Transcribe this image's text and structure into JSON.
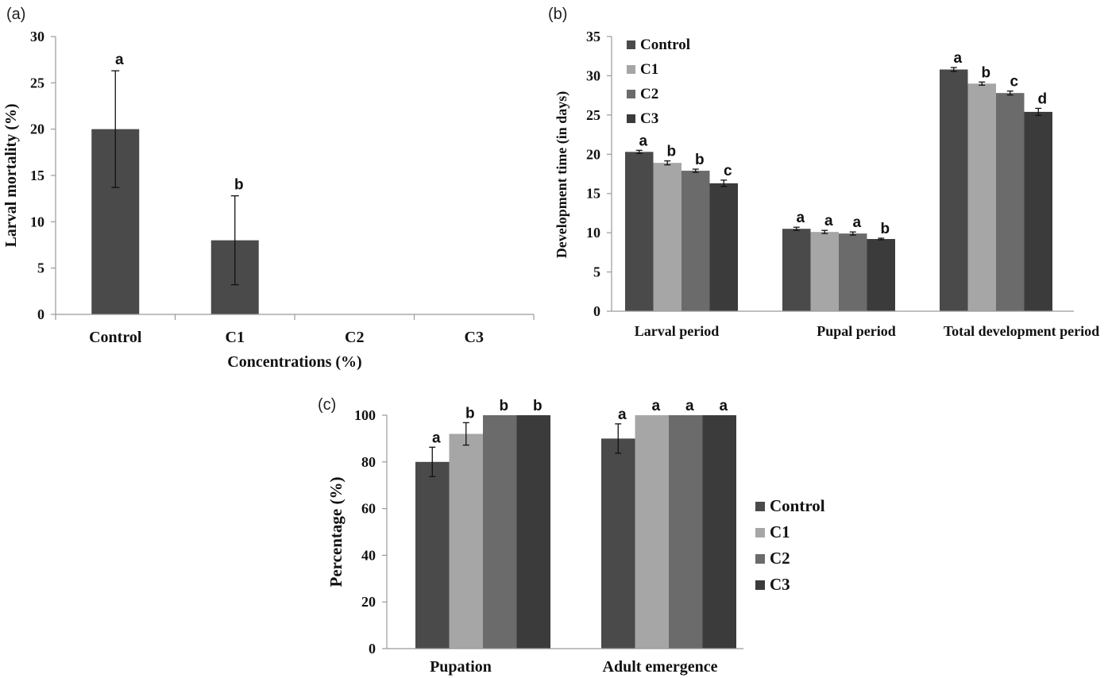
{
  "colors": {
    "Control": "#4a4a4a",
    "C1": "#a6a6a6",
    "C2": "#6b6b6b",
    "C3": "#3b3b3b"
  },
  "chart_data": [
    {
      "panel": "(a)",
      "type": "bar",
      "xlabel": "Concentrations (%)",
      "ylabel": "Larval mortality (%)",
      "ylim": [
        0,
        30
      ],
      "yticks": [
        0,
        5,
        10,
        15,
        20,
        25,
        30
      ],
      "categories": [
        "Control",
        "C1",
        "C2",
        "C3"
      ],
      "values": [
        20,
        8,
        0,
        0
      ],
      "errors": [
        6.3,
        4.8,
        0,
        0
      ],
      "letters": [
        "a",
        "b",
        "",
        ""
      ]
    },
    {
      "panel": "(b)",
      "type": "bar",
      "xlabel": "",
      "ylabel": "Development time (in days)",
      "ylim": [
        0,
        35
      ],
      "yticks": [
        0,
        5,
        10,
        15,
        20,
        25,
        30,
        35
      ],
      "categories": [
        "Larval period",
        "Pupal    period",
        "Total development period"
      ],
      "legend": [
        "Control",
        "C1",
        "C2",
        "C3"
      ],
      "series": [
        {
          "name": "Control",
          "values": [
            20.3,
            10.5,
            30.8
          ],
          "errors": [
            0.2,
            0.2,
            0.25
          ],
          "letters": [
            "a",
            "a",
            "a"
          ]
        },
        {
          "name": "C1",
          "values": [
            18.9,
            10.1,
            29.0
          ],
          "errors": [
            0.25,
            0.2,
            0.2
          ],
          "letters": [
            "b",
            "a",
            "b"
          ]
        },
        {
          "name": "C2",
          "values": [
            17.9,
            9.9,
            27.8
          ],
          "errors": [
            0.2,
            0.2,
            0.25
          ],
          "letters": [
            "b",
            "a",
            "c"
          ]
        },
        {
          "name": "C3",
          "values": [
            16.3,
            9.2,
            25.4
          ],
          "errors": [
            0.4,
            0.1,
            0.45
          ],
          "letters": [
            "c",
            "b",
            "d"
          ]
        }
      ]
    },
    {
      "panel": "(c)",
      "type": "bar",
      "xlabel": "",
      "ylabel": "Percentage (%)",
      "ylim": [
        0,
        100
      ],
      "yticks": [
        0,
        20,
        40,
        60,
        80,
        100
      ],
      "categories": [
        "Pupation",
        "Adult emergence"
      ],
      "legend": [
        "Control",
        "C1",
        "C2",
        "C3"
      ],
      "series": [
        {
          "name": "Control",
          "values": [
            80,
            90
          ],
          "errors": [
            6.3,
            6.3
          ],
          "letters": [
            "a",
            "a"
          ]
        },
        {
          "name": "C1",
          "values": [
            92,
            100
          ],
          "errors": [
            4.8,
            0
          ],
          "letters": [
            "b",
            "a"
          ]
        },
        {
          "name": "C2",
          "values": [
            100,
            100
          ],
          "errors": [
            0,
            0
          ],
          "letters": [
            "b",
            "a"
          ]
        },
        {
          "name": "C3",
          "values": [
            100,
            100
          ],
          "errors": [
            0,
            0
          ],
          "letters": [
            "b",
            "a"
          ]
        }
      ]
    }
  ]
}
